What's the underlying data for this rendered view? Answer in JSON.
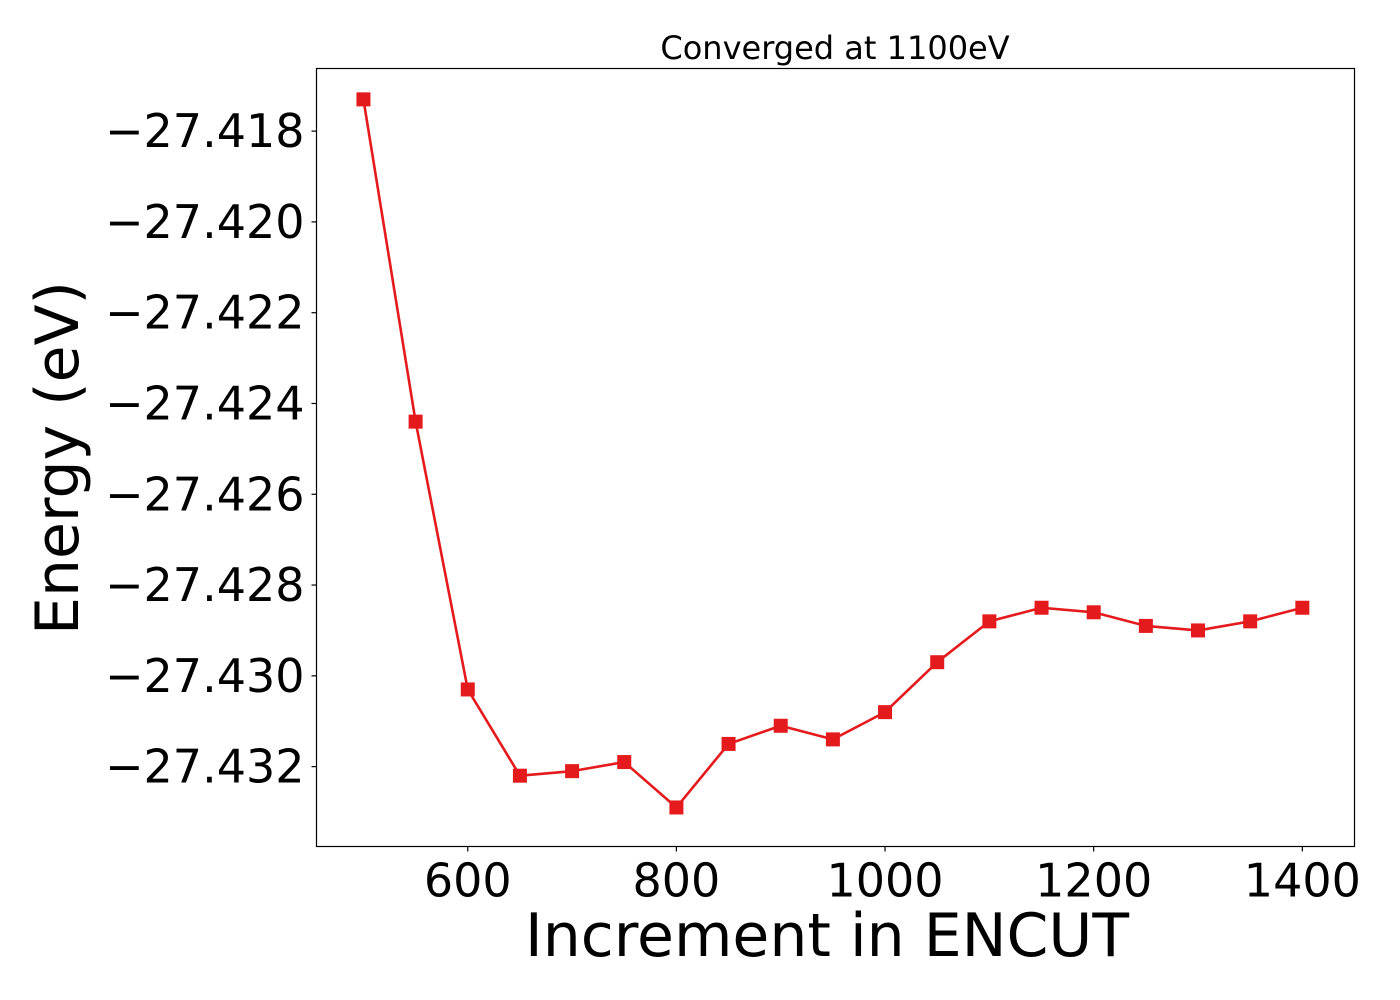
{
  "chart_data": {
    "type": "line",
    "title": "Converged at 1100eV",
    "xlabel": "Increment in ENCUT",
    "ylabel": "Energy (eV)",
    "xlim": [
      455,
      1450
    ],
    "ylim": [
      -27.43376,
      -27.41662
    ],
    "xticks": [
      600,
      800,
      1000,
      1200,
      1400
    ],
    "yticks": [
      -27.418,
      -27.42,
      -27.422,
      -27.424,
      -27.426,
      -27.428,
      -27.43,
      -27.432
    ],
    "ytick_labels": [
      "−27.418",
      "−27.420",
      "−27.422",
      "−27.424",
      "−27.426",
      "−27.428",
      "−27.430",
      "−27.432"
    ],
    "grid": false,
    "series": [
      {
        "color": "#e41a1c",
        "marker": "square",
        "x": [
          500,
          550,
          600,
          650,
          700,
          750,
          800,
          850,
          900,
          950,
          1000,
          1050,
          1100,
          1150,
          1200,
          1250,
          1300,
          1350,
          1400
        ],
        "y": [
          -27.4173,
          -27.4244,
          -27.4303,
          -27.4322,
          -27.4321,
          -27.4319,
          -27.4329,
          -27.4315,
          -27.4311,
          -27.4314,
          -27.4308,
          -27.4297,
          -27.4288,
          -27.4285,
          -27.4286,
          -27.4289,
          -27.429,
          -27.4288,
          -27.4285
        ]
      }
    ]
  }
}
